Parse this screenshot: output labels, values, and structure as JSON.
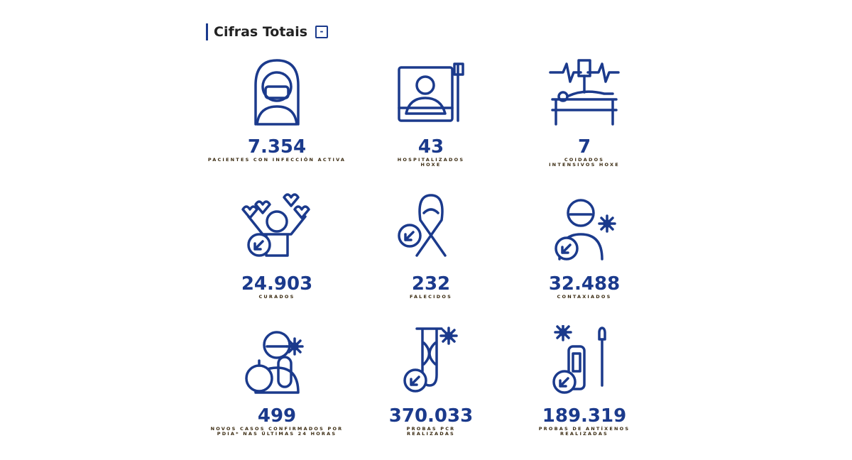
{
  "header": {
    "title": "Cifras Totais",
    "toggle": "-"
  },
  "items": [
    {
      "value": "7.354",
      "label": [
        "PACIENTES CON INFECCIÓN ACTIVA"
      ]
    },
    {
      "value": "43",
      "label": [
        "HOSPITALIZADOS",
        "HOXE"
      ]
    },
    {
      "value": "7",
      "label": [
        "COIDADOS",
        "INTENSIVOS HOXE"
      ]
    },
    {
      "value": "24.903",
      "label": [
        "CURADOS"
      ]
    },
    {
      "value": "232",
      "label": [
        "FALECIDOS"
      ]
    },
    {
      "value": "32.488",
      "label": [
        "CONTAXIADOS"
      ]
    },
    {
      "value": "499",
      "label": [
        "NOVOS CASOS CONFIRMADOS POR",
        "PDIA* NAS ÚLTIMAS 24 HORAS"
      ]
    },
    {
      "value": "370.033",
      "label": [
        "PROBAS PCR",
        "REALIZADAS"
      ]
    },
    {
      "value": "189.319",
      "label": [
        "PROBAS DE ANTÍXENOS",
        "REALIZADAS"
      ]
    }
  ]
}
